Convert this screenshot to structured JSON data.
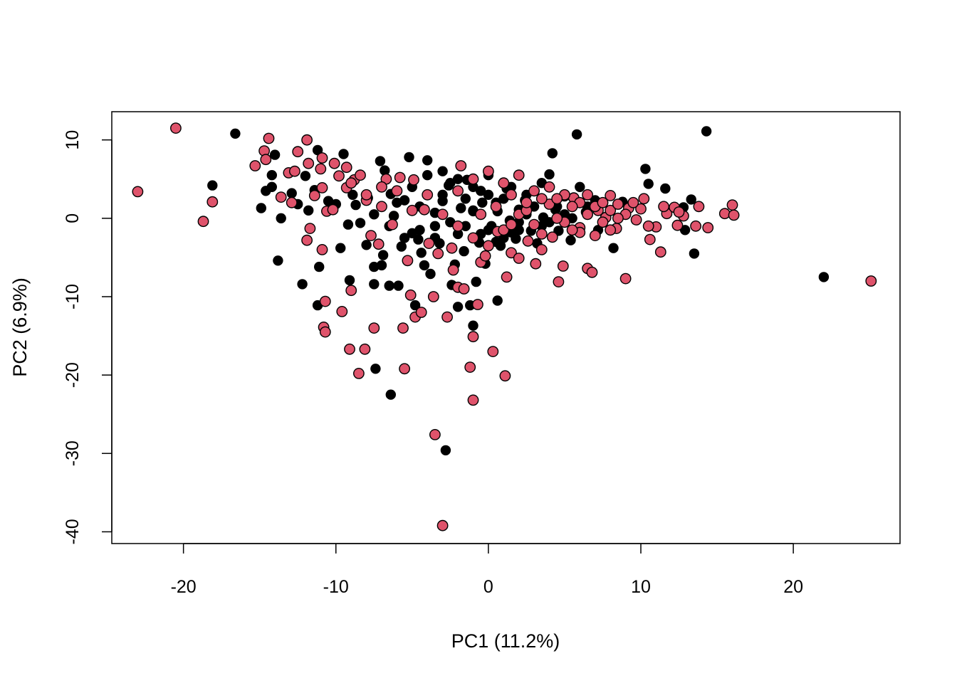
{
  "chart_data": {
    "type": "scatter",
    "title": "",
    "xlabel": "PC1 (11.2%)",
    "ylabel": "PC2 (6.9%)",
    "xlim": [
      -24.7,
      27.0
    ],
    "ylim": [
      -41.5,
      13.6
    ],
    "xticks": [
      -20,
      -10,
      0,
      10,
      20
    ],
    "yticks": [
      -40,
      -30,
      -20,
      -10,
      0,
      10
    ],
    "xtick_labels": [
      "-20",
      "-10",
      "0",
      "10",
      "20"
    ],
    "ytick_labels": [
      "-40",
      "-30",
      "-20",
      "-10",
      "0",
      "10"
    ],
    "grid": false,
    "legend": "none",
    "series": [
      {
        "color": "#000000",
        "marker": "filled-circle",
        "points": [
          [
            -16.6,
            10.8
          ],
          [
            -18.1,
            4.2
          ],
          [
            -14.9,
            1.3
          ],
          [
            -14.6,
            3.5
          ],
          [
            -14.2,
            4.0
          ],
          [
            -14.2,
            5.5
          ],
          [
            -14.0,
            8.1
          ],
          [
            -13.8,
            -5.4
          ],
          [
            -13.6,
            0.0
          ],
          [
            -12.9,
            3.2
          ],
          [
            -12.5,
            1.8
          ],
          [
            -12.2,
            -8.4
          ],
          [
            -12.0,
            5.4
          ],
          [
            -11.8,
            1.0
          ],
          [
            -11.4,
            3.6
          ],
          [
            -11.2,
            -11.1
          ],
          [
            -11.1,
            -6.2
          ],
          [
            -11.2,
            8.7
          ],
          [
            -10.5,
            2.2
          ],
          [
            -10.0,
            1.8
          ],
          [
            -9.7,
            -3.8
          ],
          [
            -9.5,
            8.2
          ],
          [
            -9.2,
            -0.8
          ],
          [
            -9.1,
            -7.9
          ],
          [
            -8.9,
            3.0
          ],
          [
            -8.7,
            1.7
          ],
          [
            -8.4,
            -0.6
          ],
          [
            -8.0,
            -3.4
          ],
          [
            -7.9,
            2.6
          ],
          [
            -7.5,
            -8.4
          ],
          [
            -7.5,
            -6.2
          ],
          [
            -7.4,
            -19.2
          ],
          [
            -7.1,
            7.3
          ],
          [
            -7.0,
            -6.0
          ],
          [
            -6.9,
            -4.7
          ],
          [
            -6.8,
            6.1
          ],
          [
            -6.5,
            -8.6
          ],
          [
            -6.4,
            -22.5
          ],
          [
            -6.4,
            3.1
          ],
          [
            -6.2,
            0.3
          ],
          [
            -5.9,
            -8.6
          ],
          [
            -5.7,
            -3.6
          ],
          [
            -5.5,
            2.3
          ],
          [
            -5.2,
            7.8
          ],
          [
            -5.0,
            -1.9
          ],
          [
            -4.8,
            -11.1
          ],
          [
            -4.6,
            -2.7
          ],
          [
            -4.4,
            -4.4
          ],
          [
            -4.2,
            -6.0
          ],
          [
            -4.0,
            7.4
          ],
          [
            -3.8,
            -7.1
          ],
          [
            -3.5,
            0.7
          ],
          [
            -3.2,
            -3.2
          ],
          [
            -3.0,
            2.2
          ],
          [
            -2.8,
            -29.6
          ],
          [
            -2.6,
            4.2
          ],
          [
            -2.4,
            -8.5
          ],
          [
            -2.2,
            -5.9
          ],
          [
            -2.0,
            -11.3
          ],
          [
            -1.8,
            1.3
          ],
          [
            -1.6,
            -4.2
          ],
          [
            -1.4,
            4.9
          ],
          [
            -1.2,
            -11.1
          ],
          [
            -1.0,
            -13.7
          ],
          [
            -1.0,
            0.9
          ],
          [
            -0.8,
            -8.1
          ],
          [
            -0.6,
            -3.1
          ],
          [
            -0.4,
            2.0
          ],
          [
            -0.2,
            -5.8
          ],
          [
            0.0,
            5.5
          ],
          [
            0.2,
            -1.0
          ],
          [
            0.6,
            -10.5
          ],
          [
            0.6,
            0.9
          ],
          [
            0.8,
            -3.5
          ],
          [
            1.2,
            3.8
          ],
          [
            1.4,
            -0.3
          ],
          [
            1.8,
            -2.6
          ],
          [
            2.0,
            1.1
          ],
          [
            2.4,
            2.3
          ],
          [
            2.8,
            -1.6
          ],
          [
            3.2,
            -3.2
          ],
          [
            3.6,
            0.1
          ],
          [
            4.0,
            5.6
          ],
          [
            4.2,
            8.3
          ],
          [
            4.4,
            1.1
          ],
          [
            4.6,
            -1.6
          ],
          [
            5.0,
            2.8
          ],
          [
            5.4,
            -2.8
          ],
          [
            5.8,
            10.7
          ],
          [
            6.0,
            4.0
          ],
          [
            6.4,
            0.8
          ],
          [
            7.0,
            2.3
          ],
          [
            7.2,
            -1.5
          ],
          [
            8.2,
            -3.8
          ],
          [
            8.8,
            2.1
          ],
          [
            10.3,
            6.3
          ],
          [
            10.5,
            4.4
          ],
          [
            11.6,
            3.8
          ],
          [
            12.8,
            1.4
          ],
          [
            12.9,
            -1.5
          ],
          [
            13.3,
            2.4
          ],
          [
            13.5,
            -4.5
          ],
          [
            14.3,
            11.1
          ],
          [
            22.0,
            -7.5
          ],
          [
            -3.0,
            3.0
          ],
          [
            -2.5,
            4.5
          ],
          [
            -1.5,
            2.5
          ],
          [
            -0.5,
            3.5
          ],
          [
            0.5,
            2.0
          ],
          [
            1.5,
            4.0
          ],
          [
            2.5,
            3.0
          ],
          [
            3.5,
            4.5
          ],
          [
            -4.5,
            1.5
          ],
          [
            -3.5,
            -1.0
          ],
          [
            -2.0,
            -2.0
          ],
          [
            -1.0,
            1.0
          ],
          [
            0.0,
            -1.5
          ],
          [
            1.0,
            -2.5
          ],
          [
            2.0,
            -0.5
          ],
          [
            3.0,
            1.5
          ],
          [
            4.0,
            -0.5
          ],
          [
            5.0,
            0.5
          ],
          [
            -6.0,
            2.0
          ],
          [
            -5.0,
            4.0
          ],
          [
            -4.0,
            5.5
          ],
          [
            -3.0,
            6.0
          ],
          [
            -2.0,
            5.0
          ],
          [
            -1.0,
            4.0
          ],
          [
            0.0,
            3.0
          ],
          [
            1.0,
            2.5
          ],
          [
            2.0,
            -1.5
          ],
          [
            -7.5,
            0.5
          ],
          [
            -6.5,
            -1.0
          ],
          [
            -5.5,
            -2.5
          ],
          [
            -4.5,
            -1.5
          ],
          [
            -3.5,
            -2.5
          ],
          [
            -2.5,
            -0.5
          ],
          [
            -1.5,
            -1.0
          ],
          [
            -0.5,
            -2.0
          ],
          [
            0.5,
            -3.0
          ],
          [
            1.5,
            -1.8
          ],
          [
            2.5,
            0.5
          ],
          [
            3.5,
            -1.0
          ],
          [
            4.5,
            1.5
          ],
          [
            5.5,
            0.0
          ],
          [
            6.5,
            1.5
          ]
        ]
      },
      {
        "color": "#DF536B",
        "marker": "filled-circle-outlined",
        "points": [
          [
            -23.0,
            3.4
          ],
          [
            -20.5,
            11.5
          ],
          [
            -18.7,
            -0.4
          ],
          [
            -18.1,
            2.1
          ],
          [
            -15.3,
            6.7
          ],
          [
            -14.7,
            8.6
          ],
          [
            -14.4,
            10.2
          ],
          [
            -14.6,
            7.5
          ],
          [
            -13.6,
            2.7
          ],
          [
            -13.1,
            5.8
          ],
          [
            -12.9,
            2.0
          ],
          [
            -12.5,
            8.5
          ],
          [
            -12.7,
            6.0
          ],
          [
            -11.9,
            10.0
          ],
          [
            -11.8,
            7.0
          ],
          [
            -11.9,
            -2.8
          ],
          [
            -11.7,
            -1.3
          ],
          [
            -11.4,
            2.9
          ],
          [
            -11.0,
            6.3
          ],
          [
            -10.9,
            3.9
          ],
          [
            -10.9,
            7.7
          ],
          [
            -10.8,
            -13.9
          ],
          [
            -10.7,
            -14.5
          ],
          [
            -10.7,
            -10.6
          ],
          [
            -10.9,
            -4.0
          ],
          [
            -10.6,
            0.9
          ],
          [
            -10.2,
            1.1
          ],
          [
            -10.1,
            7.0
          ],
          [
            -9.8,
            5.4
          ],
          [
            -9.6,
            -11.9
          ],
          [
            -9.3,
            3.9
          ],
          [
            -9.3,
            6.5
          ],
          [
            -9.1,
            -16.7
          ],
          [
            -9.0,
            -9.2
          ],
          [
            -8.8,
            4.9
          ],
          [
            -8.5,
            -19.8
          ],
          [
            -8.4,
            5.5
          ],
          [
            -8.1,
            -16.7
          ],
          [
            -8.0,
            2.3
          ],
          [
            -7.7,
            -2.2
          ],
          [
            -7.5,
            -14.0
          ],
          [
            -7.2,
            -3.3
          ],
          [
            -7.0,
            1.5
          ],
          [
            -6.7,
            5.0
          ],
          [
            -6.3,
            -0.8
          ],
          [
            -5.8,
            5.2
          ],
          [
            -5.6,
            -14.0
          ],
          [
            -5.5,
            -19.2
          ],
          [
            -5.3,
            -5.4
          ],
          [
            -5.1,
            -9.8
          ],
          [
            -4.9,
            4.9
          ],
          [
            -4.8,
            -12.6
          ],
          [
            -4.4,
            -12.0
          ],
          [
            -4.2,
            1.1
          ],
          [
            -3.9,
            -3.2
          ],
          [
            -3.5,
            -27.6
          ],
          [
            -3.6,
            -10.0
          ],
          [
            -3.3,
            -4.5
          ],
          [
            -3.0,
            -39.2
          ],
          [
            -2.7,
            -12.6
          ],
          [
            -2.4,
            -3.8
          ],
          [
            -2.3,
            -6.6
          ],
          [
            -2.0,
            -8.8
          ],
          [
            -1.8,
            6.7
          ],
          [
            -1.6,
            -9.0
          ],
          [
            -1.2,
            -19.0
          ],
          [
            -1.0,
            -23.2
          ],
          [
            -1.0,
            -15.1
          ],
          [
            -0.7,
            -11.0
          ],
          [
            -0.5,
            -5.6
          ],
          [
            -0.2,
            -4.8
          ],
          [
            0.3,
            -17.0
          ],
          [
            0.6,
            -1.7
          ],
          [
            1.1,
            -20.1
          ],
          [
            1.2,
            -7.5
          ],
          [
            1.5,
            -4.4
          ],
          [
            2.0,
            -5.1
          ],
          [
            2.6,
            -2.9
          ],
          [
            3.1,
            -5.8
          ],
          [
            3.5,
            -4.0
          ],
          [
            4.2,
            -2.4
          ],
          [
            4.6,
            -8.1
          ],
          [
            4.9,
            -6.1
          ],
          [
            5.6,
            2.6
          ],
          [
            6.0,
            -1.2
          ],
          [
            6.5,
            -6.4
          ],
          [
            6.8,
            -6.9
          ],
          [
            7.2,
            1.0
          ],
          [
            7.7,
            0.1
          ],
          [
            8.0,
            2.9
          ],
          [
            8.4,
            -1.3
          ],
          [
            9.0,
            -7.7
          ],
          [
            9.2,
            1.3
          ],
          [
            9.7,
            -0.2
          ],
          [
            10.2,
            2.5
          ],
          [
            10.6,
            -2.7
          ],
          [
            11.0,
            -1.1
          ],
          [
            11.3,
            -4.3
          ],
          [
            11.7,
            0.6
          ],
          [
            12.2,
            1.4
          ],
          [
            12.4,
            -0.9
          ],
          [
            12.8,
            0.3
          ],
          [
            13.6,
            -1.0
          ],
          [
            13.8,
            1.5
          ],
          [
            14.4,
            -1.2
          ],
          [
            15.5,
            0.6
          ],
          [
            16.0,
            1.7
          ],
          [
            16.1,
            0.4
          ],
          [
            25.1,
            -8.0
          ],
          [
            -2.0,
            3.5
          ],
          [
            -1.0,
            5.0
          ],
          [
            0.0,
            6.0
          ],
          [
            1.0,
            4.5
          ],
          [
            2.0,
            5.5
          ],
          [
            3.0,
            3.5
          ],
          [
            4.0,
            4.0
          ],
          [
            5.0,
            3.0
          ],
          [
            6.0,
            2.0
          ],
          [
            7.0,
            1.5
          ],
          [
            8.0,
            1.0
          ],
          [
            9.0,
            0.5
          ],
          [
            10.0,
            1.2
          ],
          [
            -3.0,
            0.5
          ],
          [
            -2.0,
            -1.0
          ],
          [
            -1.0,
            -2.5
          ],
          [
            0.0,
            -3.5
          ],
          [
            1.0,
            -1.5
          ],
          [
            2.0,
            0.5
          ],
          [
            3.0,
            -0.8
          ],
          [
            4.0,
            1.8
          ],
          [
            5.0,
            -0.5
          ],
          [
            6.0,
            -1.8
          ],
          [
            7.0,
            -2.2
          ],
          [
            8.0,
            -1.5
          ],
          [
            -4.0,
            3.0
          ],
          [
            -5.0,
            1.0
          ],
          [
            -6.0,
            3.5
          ],
          [
            -7.0,
            4.0
          ],
          [
            -8.0,
            3.0
          ],
          [
            -9.0,
            4.5
          ],
          [
            1.5,
            3.0
          ],
          [
            2.5,
            1.0
          ],
          [
            3.5,
            2.5
          ],
          [
            4.5,
            0.0
          ],
          [
            5.5,
            1.5
          ],
          [
            6.5,
            0.5
          ],
          [
            7.5,
            2.0
          ],
          [
            8.5,
            0.0
          ],
          [
            9.5,
            2.0
          ],
          [
            10.5,
            -1.0
          ],
          [
            11.5,
            1.5
          ],
          [
            12.5,
            0.8
          ],
          [
            -0.5,
            0.5
          ],
          [
            0.5,
            1.5
          ],
          [
            1.5,
            -0.8
          ],
          [
            2.5,
            2.0
          ],
          [
            3.5,
            -2.0
          ],
          [
            4.5,
            2.5
          ],
          [
            5.5,
            -1.5
          ],
          [
            6.5,
            3.0
          ],
          [
            7.5,
            -0.5
          ],
          [
            8.5,
            1.8
          ]
        ]
      }
    ]
  }
}
